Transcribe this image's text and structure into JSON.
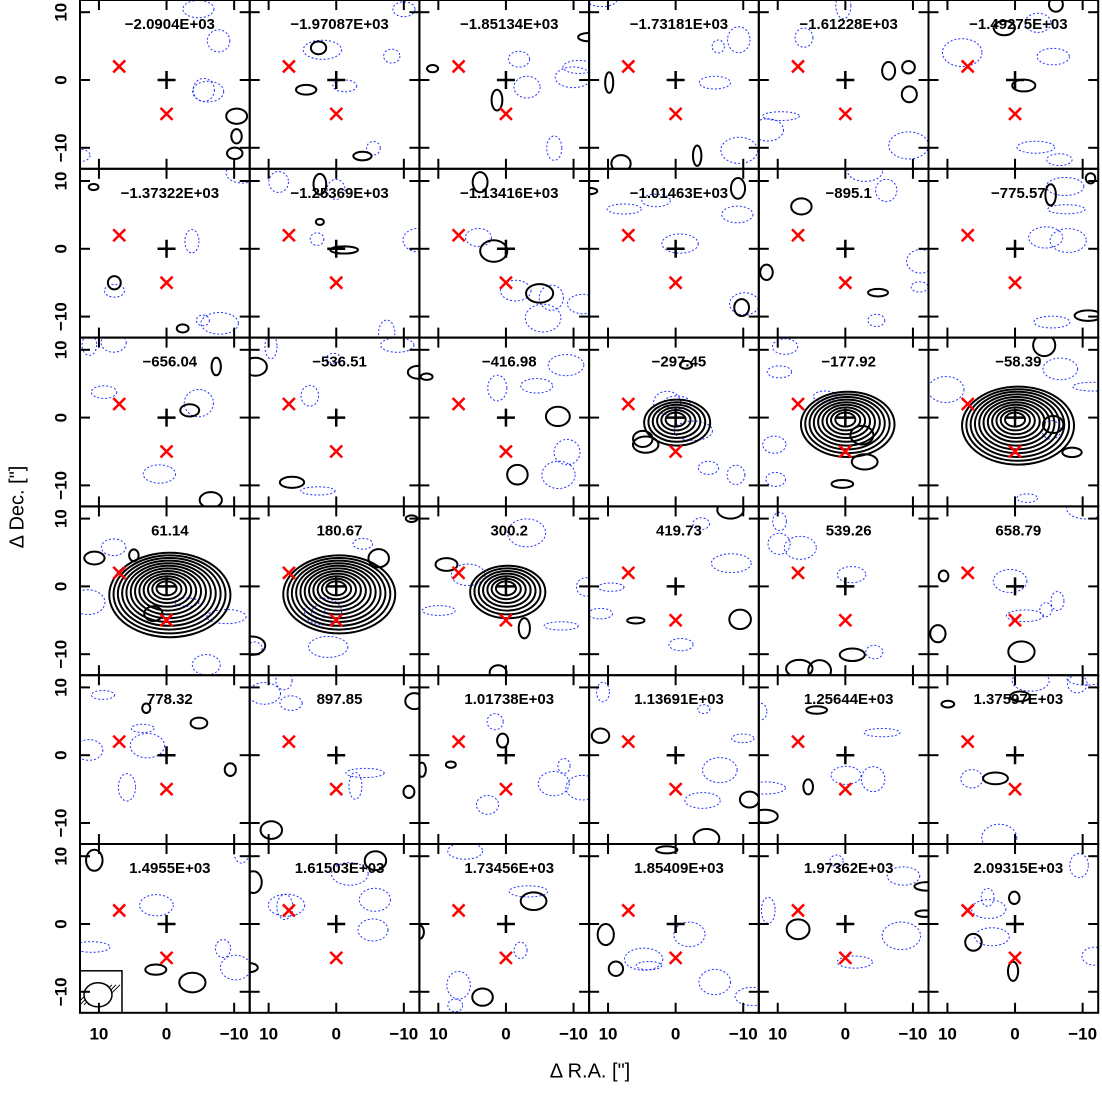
{
  "chart_data": {
    "type": "channel-map",
    "xlabel": "Δ R.A. [\"]",
    "ylabel": "Δ Dec. [\"]",
    "xlim": [
      12.8,
      -12.3
    ],
    "ylim": [
      -13.1,
      11.8
    ],
    "xticks": [
      10,
      0,
      {
        "value": -10,
        "label": "−10"
      }
    ],
    "yticks": [
      {
        "value": -10,
        "label": "−10"
      },
      0,
      10
    ],
    "channels": [
      "−2.0904E+03",
      "−1.97087E+03",
      "−1.85134E+03",
      "−1.73181E+03",
      "−1.61228E+03",
      "−1.49275E+03",
      "−1.37322E+03",
      "−1.25369E+03",
      "−1.13416E+03",
      "−1.01463E+03",
      "−895.1",
      "−775.57",
      "−656.04",
      "−536.51",
      "−416.98",
      "−297.45",
      "−177.92",
      "−58.39",
      "61.14",
      "180.67",
      "300.2",
      "419.73",
      "539.26",
      "658.79",
      "778.32",
      "897.85",
      "1.01738E+03",
      "1.13691E+03",
      "1.25644E+03",
      "1.37597E+03",
      "1.4955E+03",
      "1.61503E+03",
      "1.73456E+03",
      "1.85409E+03",
      "1.97362E+03",
      "2.09315E+03"
    ],
    "center": {
      "x": 0,
      "y": 0,
      "color": "#000000"
    },
    "sources": {
      "x": [
        7,
        0
      ],
      "y": [
        2,
        -5
      ],
      "color": "#ff0000"
    }
  }
}
